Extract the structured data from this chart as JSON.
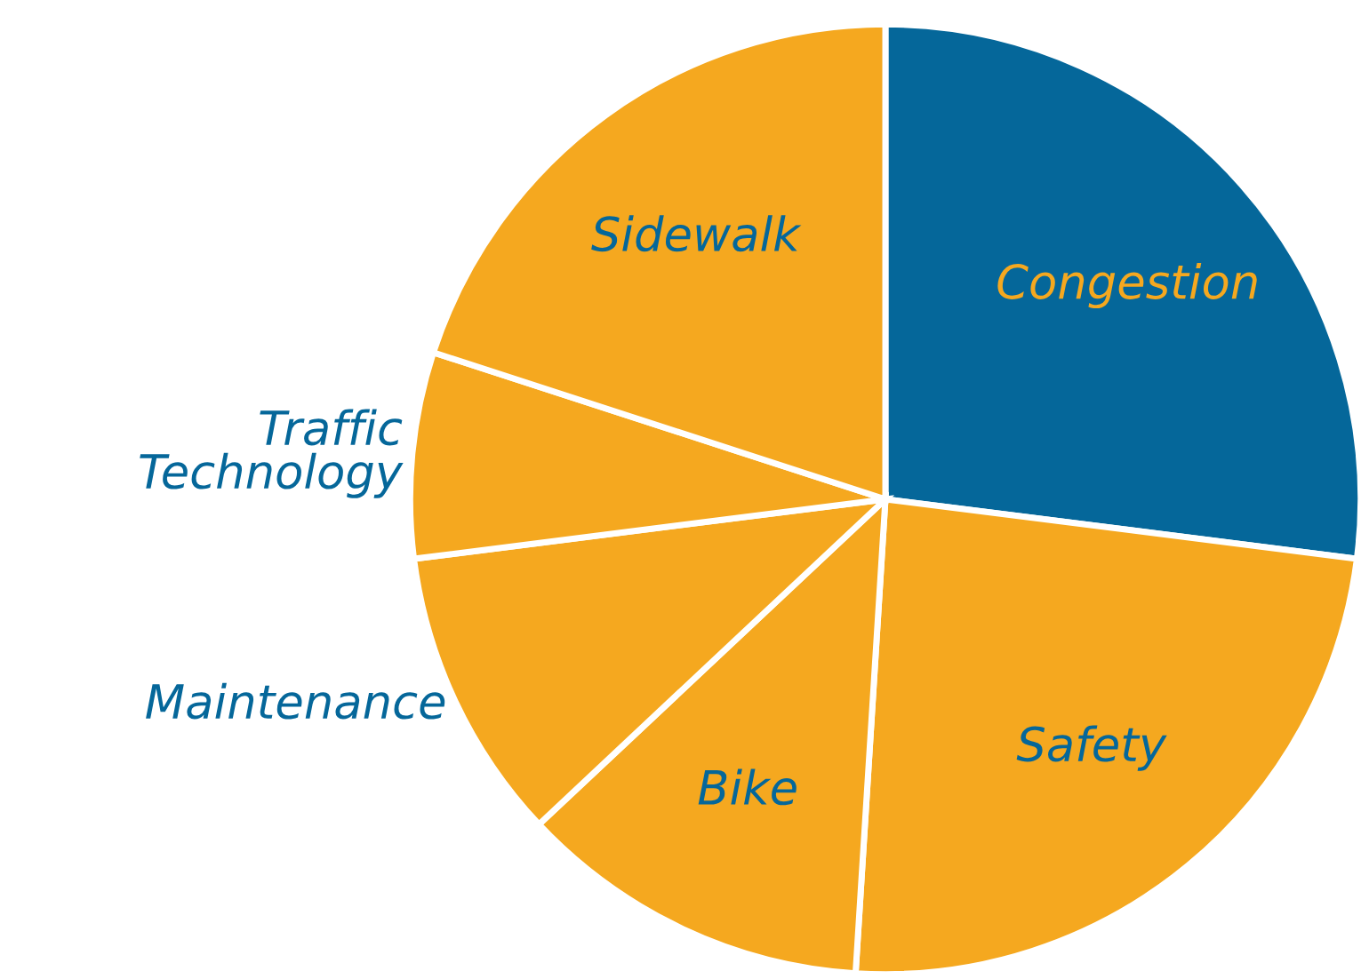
{
  "chart_data": {
    "type": "pie",
    "categories": [
      "Congestion",
      "Safety",
      "Bike",
      "Maintenance",
      "Traffic\nTechnology",
      "Sidewalk"
    ],
    "values": [
      27,
      24,
      12,
      10,
      7,
      20
    ],
    "colors": [
      "#05679a",
      "#f5a81f",
      "#f5a81f",
      "#f5a81f",
      "#f5a81f",
      "#f5a81f"
    ],
    "legend": false
  }
}
